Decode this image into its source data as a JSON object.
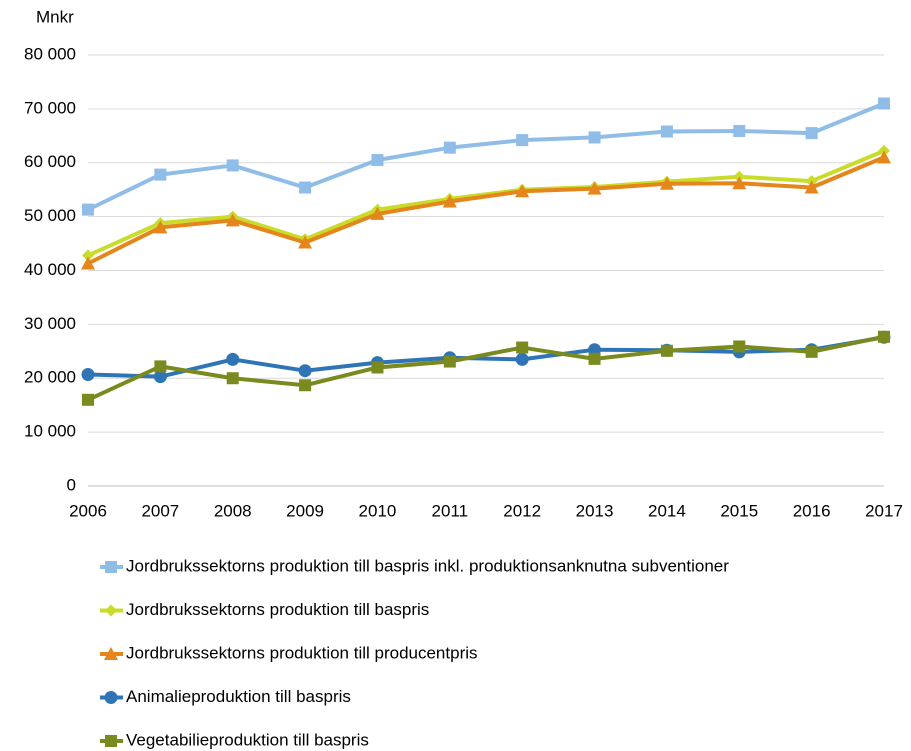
{
  "chart_data": {
    "type": "line",
    "y_label": "Mnkr",
    "categories": [
      "2006",
      "2007",
      "2008",
      "2009",
      "2010",
      "2011",
      "2012",
      "2013",
      "2014",
      "2015",
      "2016",
      "2017"
    ],
    "ylim": [
      0,
      80000
    ],
    "yticks": [
      0,
      {
        "value": 10000,
        "label": "10 000"
      },
      {
        "value": 20000,
        "label": "20 000"
      },
      {
        "value": 30000,
        "label": "30 000"
      },
      {
        "value": 40000,
        "label": "40 000"
      },
      {
        "value": 50000,
        "label": "50 000"
      },
      {
        "value": 60000,
        "label": "60 000"
      },
      {
        "value": 70000,
        "label": "70 000"
      },
      {
        "value": 80000,
        "label": "80 000"
      }
    ],
    "grid": true,
    "series": [
      {
        "name": "Jordbrukssektorns produktion till baspris inkl. produktionsanknutna subventioner",
        "color": "#8fbde8",
        "marker": "square",
        "values": [
          51300,
          57800,
          59500,
          55400,
          60500,
          62800,
          64200,
          64700,
          65800,
          65900,
          65500,
          71000
        ]
      },
      {
        "name": "Jordbrukssektorns produktion till baspris",
        "color": "#c9dc2a",
        "marker": "diamond",
        "values": [
          42800,
          48800,
          50000,
          45800,
          51300,
          53300,
          55000,
          55500,
          56500,
          57400,
          56600,
          62200
        ]
      },
      {
        "name": "Jordbrukssektorns produktion till producentpris",
        "color": "#e4861b",
        "marker": "triangle",
        "values": [
          41300,
          48000,
          49300,
          45200,
          50500,
          52800,
          54700,
          55200,
          56100,
          56200,
          55400,
          61000
        ]
      },
      {
        "name": "Animalieproduktion till baspris",
        "color": "#2f75b5",
        "marker": "circle",
        "values": [
          20700,
          20300,
          23500,
          21400,
          22900,
          23800,
          23500,
          25300,
          25200,
          24900,
          25300,
          27600
        ]
      },
      {
        "name": "Vegetabilieproduktion till baspris",
        "color": "#7a8a1e",
        "marker": "square",
        "values": [
          16000,
          22200,
          20000,
          18700,
          22000,
          23100,
          25700,
          23600,
          25100,
          25900,
          24900,
          27700
        ]
      }
    ]
  }
}
